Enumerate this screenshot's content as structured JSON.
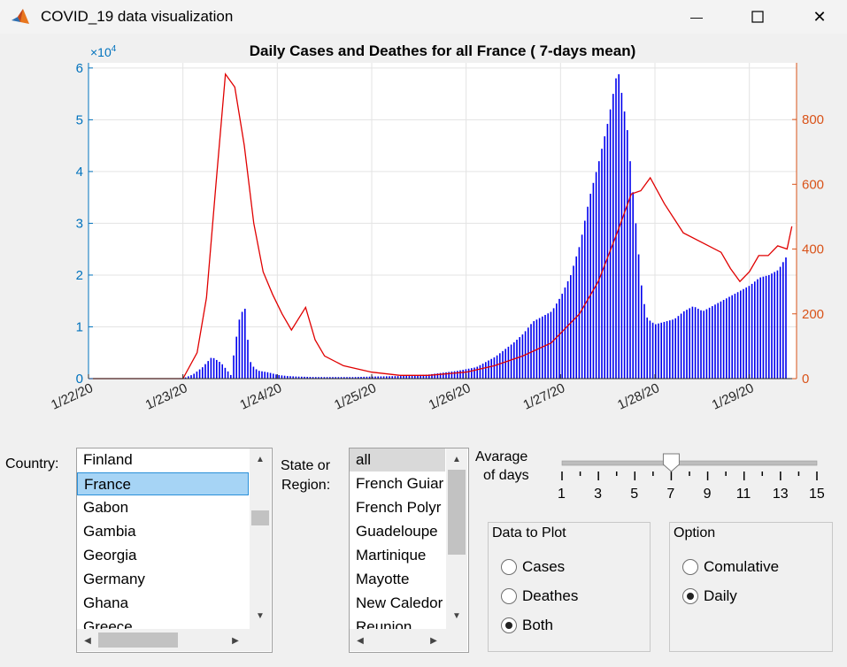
{
  "window": {
    "title": "COVID_19 data visualization",
    "minimize_label": "—",
    "close_label": "✕"
  },
  "chart_data": {
    "type": "bar+line",
    "title": "Daily Cases and Deathes for all France ( 7-days mean)",
    "xlabel": "",
    "ylabel_left": "",
    "ylabel_right": "",
    "left_exponent": "×10",
    "left_exponent_power": "4",
    "x_tick_labels": [
      "1/22/20",
      "1/23/20",
      "1/24/20",
      "1/25/20",
      "1/26/20",
      "1/27/20",
      "1/28/20",
      "1/29/20"
    ],
    "left_y_ticks": [
      "0",
      "1",
      "2",
      "3",
      "4",
      "5",
      "6"
    ],
    "right_y_ticks": [
      "0",
      "200",
      "400",
      "600",
      "800"
    ],
    "ylim_left": [
      0,
      61000
    ],
    "ylim_right": [
      0,
      975
    ],
    "grid": true,
    "colors": {
      "bars": "#0000ee",
      "line": "#e00000",
      "left_axis": "#0072bd",
      "right_axis": "#d95319"
    },
    "series": [
      {
        "kind": "bar",
        "axis": "left",
        "x": [
          0,
          0.5,
          1,
          1.1,
          1.2,
          1.3,
          1.4,
          1.5,
          1.55,
          1.6,
          1.65,
          1.7,
          1.75,
          1.8,
          1.9,
          2,
          2.1,
          2.2,
          2.4,
          2.6,
          2.8,
          3,
          3.3,
          3.6,
          3.9,
          4.1,
          4.2,
          4.3,
          4.4,
          4.5,
          4.6,
          4.7,
          4.8,
          4.9,
          5,
          5.1,
          5.2,
          5.3,
          5.4,
          5.5,
          5.6,
          5.7,
          5.75,
          5.8,
          5.85,
          5.9,
          5.95,
          6,
          6.1,
          6.2,
          6.3,
          6.4,
          6.5,
          6.6,
          6.7,
          6.8,
          6.9,
          7,
          7.1,
          7.2,
          7.3,
          7.4
        ],
        "y": [
          0,
          0,
          100,
          800,
          2200,
          4200,
          3000,
          700,
          7000,
          12500,
          13500,
          3500,
          2000,
          1500,
          1200,
          700,
          500,
          400,
          300,
          300,
          300,
          400,
          500,
          800,
          1500,
          2200,
          3200,
          4200,
          5600,
          7000,
          8700,
          11000,
          12000,
          13000,
          16000,
          20000,
          26000,
          35000,
          42000,
          50000,
          60000,
          48000,
          38000,
          28000,
          18000,
          12000,
          11000,
          10500,
          11000,
          11500,
          13000,
          14000,
          13000,
          14000,
          15000,
          16000,
          17000,
          18000,
          19500,
          20000,
          21000,
          24000
        ]
      },
      {
        "kind": "line",
        "axis": "right",
        "x": [
          0,
          1,
          1.15,
          1.25,
          1.35,
          1.45,
          1.55,
          1.65,
          1.75,
          1.85,
          1.95,
          2.05,
          2.15,
          2.3,
          2.4,
          2.5,
          2.7,
          3,
          3.3,
          3.6,
          4,
          4.3,
          4.6,
          4.9,
          5.2,
          5.4,
          5.6,
          5.75,
          5.85,
          5.95,
          6.1,
          6.3,
          6.5,
          6.7,
          6.8,
          6.9,
          7,
          7.1,
          7.2,
          7.3,
          7.4,
          7.45
        ],
        "y": [
          0,
          0,
          80,
          250,
          600,
          940,
          900,
          720,
          480,
          330,
          260,
          200,
          150,
          220,
          120,
          70,
          40,
          20,
          10,
          10,
          20,
          40,
          70,
          110,
          200,
          300,
          450,
          570,
          580,
          620,
          540,
          450,
          420,
          390,
          340,
          300,
          330,
          380,
          380,
          410,
          400,
          470
        ]
      }
    ]
  },
  "country": {
    "label": "Country:",
    "items": [
      "Finland",
      "France",
      "Gabon",
      "Gambia",
      "Georgia",
      "Germany",
      "Ghana",
      "Greece"
    ],
    "selected": "France"
  },
  "region": {
    "label_line1": "State or",
    "label_line2": "Region:",
    "items": [
      "all",
      "French Guiar",
      "French Polyr",
      "Guadeloupe",
      "Martinique",
      "Mayotte",
      "New Caledor",
      "Reunion"
    ],
    "selected": "all"
  },
  "average": {
    "label_line1": "Avarage",
    "label_line2": "of days",
    "value": 7,
    "min": 1,
    "max": 15,
    "tick_labels": [
      "1",
      "3",
      "5",
      "7",
      "9",
      "11",
      "13",
      "15"
    ]
  },
  "data_to_plot": {
    "title": "Data to Plot",
    "options": [
      "Cases",
      "Deathes",
      "Both"
    ],
    "selected": "Both"
  },
  "option": {
    "title": "Option",
    "options": [
      "Comulative",
      "Daily"
    ],
    "selected": "Daily"
  }
}
